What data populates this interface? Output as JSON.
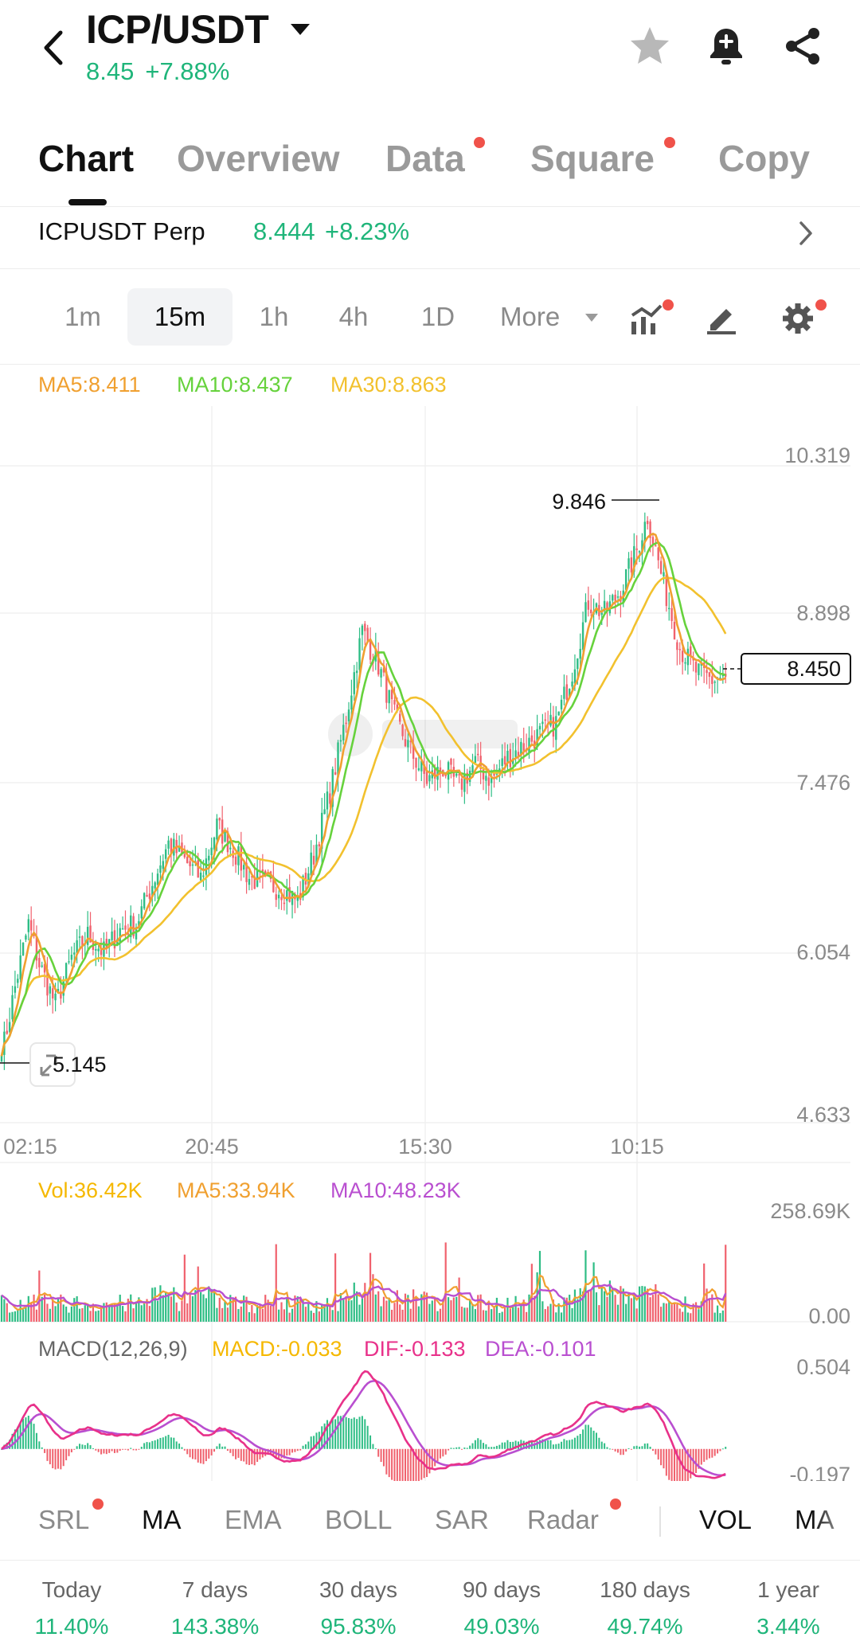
{
  "header": {
    "pair": "ICP/USDT",
    "price": "8.45",
    "change": "+7.88%"
  },
  "tabs": [
    {
      "label": "Chart",
      "active": true,
      "dot": false
    },
    {
      "label": "Overview",
      "active": false,
      "dot": false
    },
    {
      "label": "Data",
      "active": false,
      "dot": true
    },
    {
      "label": "Square",
      "active": false,
      "dot": true
    },
    {
      "label": "Copy",
      "active": false,
      "dot": false
    }
  ],
  "perp": {
    "name": "ICPUSDT Perp",
    "price": "8.444",
    "change": "+8.23%"
  },
  "timeframes": {
    "items": [
      "1m",
      "15m",
      "1h",
      "4h",
      "1D"
    ],
    "selected": "15m",
    "more": "More"
  },
  "ma_legend": {
    "ma5": "MA5:8.411",
    "ma10": "MA10:8.437",
    "ma30": "MA30:8.863"
  },
  "price_axis": [
    "10.319",
    "8.898",
    "7.476",
    "6.054",
    "4.633"
  ],
  "time_axis": [
    "02:15",
    "20:45",
    "15:30",
    "10:15"
  ],
  "markers": {
    "high": "9.846",
    "low": "5.145",
    "current": "8.450"
  },
  "volume_legend": {
    "vol": "Vol:36.42K",
    "ma5": "MA5:33.94K",
    "ma10": "MA10:48.23K"
  },
  "volume_axis": [
    "258.69K",
    "0.00"
  ],
  "macd_legend": {
    "label": "MACD(12,26,9)",
    "macd": "MACD:-0.033",
    "dif": "DIF:-0.133",
    "dea": "DEA:-0.101"
  },
  "macd_axis": [
    "0.504",
    "-0.197"
  ],
  "indicators": {
    "items": [
      {
        "label": "SRL",
        "dot": true,
        "active": false
      },
      {
        "label": "MA",
        "dot": false,
        "active": true
      },
      {
        "label": "EMA",
        "dot": false,
        "active": false
      },
      {
        "label": "BOLL",
        "dot": false,
        "active": false
      },
      {
        "label": "SAR",
        "dot": false,
        "active": false
      },
      {
        "label": "Radar",
        "dot": true,
        "active": false
      }
    ],
    "sub": [
      {
        "label": "VOL",
        "active": true
      },
      {
        "label": "MA",
        "active": false
      }
    ]
  },
  "performance": [
    {
      "label": "Today",
      "value": "11.40%"
    },
    {
      "label": "7 days",
      "value": "143.38%"
    },
    {
      "label": "30 days",
      "value": "95.83%"
    },
    {
      "label": "90 days",
      "value": "49.03%"
    },
    {
      "label": "180 days",
      "value": "49.74%"
    },
    {
      "label": "1 year",
      "value": "3.44%"
    }
  ],
  "colors": {
    "up": "#2ebd85",
    "down": "#f0616d",
    "ma5": "#f0a030",
    "ma10": "#66d23c",
    "ma30": "#f2c12e",
    "vol": "#f5b800",
    "vol_ma10": "#b94fd0",
    "dif": "#e8318a",
    "dea": "#b94fd0",
    "accent_green": "#1fb57a",
    "dot_red": "#f0524a"
  },
  "chart_data": {
    "type": "candlestick",
    "interval": "15m",
    "ylim": [
      4.633,
      10.319
    ],
    "anchors": [
      [
        0,
        5.15
      ],
      [
        5,
        5.75
      ],
      [
        10,
        6.3
      ],
      [
        14,
        5.95
      ],
      [
        20,
        5.6
      ],
      [
        26,
        6.0
      ],
      [
        32,
        6.2
      ],
      [
        38,
        6.05
      ],
      [
        44,
        6.25
      ],
      [
        50,
        6.3
      ],
      [
        56,
        6.65
      ],
      [
        62,
        7.0
      ],
      [
        68,
        6.85
      ],
      [
        74,
        6.7
      ],
      [
        80,
        7.15
      ],
      [
        86,
        6.95
      ],
      [
        92,
        6.7
      ],
      [
        98,
        6.65
      ],
      [
        104,
        6.6
      ],
      [
        110,
        6.5
      ],
      [
        116,
        6.9
      ],
      [
        122,
        7.45
      ],
      [
        128,
        8.1
      ],
      [
        134,
        8.85
      ],
      [
        140,
        8.55
      ],
      [
        146,
        8.1
      ],
      [
        152,
        7.8
      ],
      [
        158,
        7.55
      ],
      [
        164,
        7.65
      ],
      [
        170,
        7.5
      ],
      [
        176,
        7.7
      ],
      [
        182,
        7.55
      ],
      [
        188,
        7.75
      ],
      [
        194,
        7.85
      ],
      [
        200,
        7.95
      ],
      [
        206,
        8.05
      ],
      [
        212,
        8.5
      ],
      [
        218,
        9.1
      ],
      [
        224,
        9.0
      ],
      [
        230,
        9.2
      ],
      [
        236,
        9.55
      ],
      [
        240,
        9.85
      ],
      [
        246,
        9.25
      ],
      [
        252,
        8.7
      ],
      [
        258,
        8.5
      ],
      [
        264,
        8.42
      ],
      [
        268,
        8.45
      ]
    ]
  }
}
